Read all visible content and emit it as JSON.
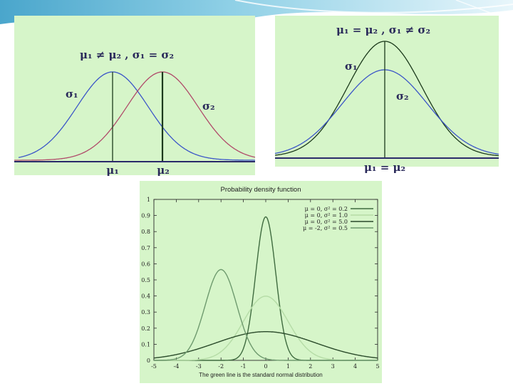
{
  "colors": {
    "panel_bg": "#d6f5c9",
    "blue": "#3b55c8",
    "red": "#b04a6a",
    "axis": "#2a2a6a",
    "dark": "#1c3a1c",
    "banner": "#5fb4d4"
  },
  "panel_a": {
    "title": "μ₁ ≠ μ₂ , σ₁ = σ₂",
    "sigma1": "σ₁",
    "sigma2": "σ₂",
    "mu1": "μ₁",
    "mu2": "μ₂"
  },
  "panel_b": {
    "title": "μ₁ = μ₂ , σ₁ ≠ σ₂",
    "sigma1": "σ₁",
    "sigma2": "σ₂",
    "mu_label": "μ₁ = μ₂"
  },
  "chart_data": {
    "type": "line",
    "title": "Probability density function",
    "caption": "The green line is the standard normal distribution",
    "xlim": [
      -5,
      5
    ],
    "ylim": [
      0,
      1
    ],
    "x_ticks": [
      "-5",
      "-4",
      "-3",
      "-2",
      "-1",
      "0",
      "1",
      "2",
      "3",
      "4",
      "5"
    ],
    "y_ticks": [
      "0",
      "0.1",
      "0.2",
      "0.3",
      "0.4",
      "0.5",
      "0.6",
      "0.7",
      "0.8",
      "0.9",
      "1"
    ],
    "legend_position": "top-right",
    "series": [
      {
        "name": "μ = 0, σ² = 0.2",
        "mu": 0,
        "variance": 0.2,
        "color": "#3f6b3f"
      },
      {
        "name": "μ = 0, σ² = 1.0",
        "mu": 0,
        "variance": 1.0,
        "color": "#b5dca6"
      },
      {
        "name": "μ = 0, σ² = 5.0",
        "mu": 0,
        "variance": 5.0,
        "color": "#2a4a2a"
      },
      {
        "name": "μ = -2, σ² = 0.5",
        "mu": -2,
        "variance": 0.5,
        "color": "#6e9a6e"
      }
    ]
  }
}
